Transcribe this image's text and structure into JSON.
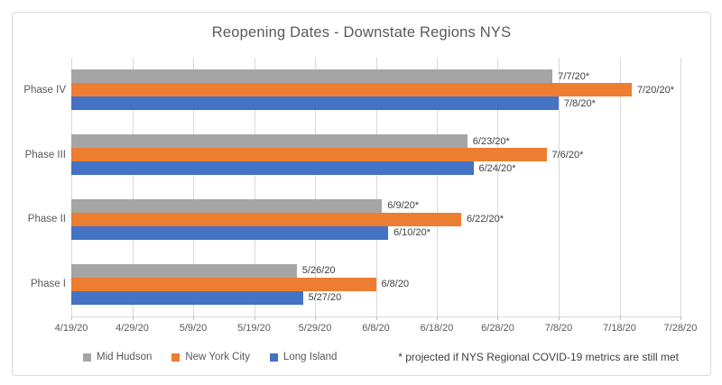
{
  "chart_data": {
    "type": "bar",
    "orientation": "horizontal",
    "title": "Reopening Dates - Downstate Regions NYS",
    "categories": [
      "Phase IV",
      "Phase III",
      "Phase II",
      "Phase I"
    ],
    "series": [
      {
        "name": "Mid Hudson",
        "color": "#A5A5A5",
        "dates": [
          "7/7/20",
          "6/23/20",
          "6/9/20",
          "5/26/20"
        ],
        "labels": [
          "7/7/20*",
          "6/23/20*",
          "6/9/20*",
          "5/26/20"
        ]
      },
      {
        "name": "New York City",
        "color": "#ED7D31",
        "dates": [
          "7/20/20",
          "7/6/20",
          "6/22/20",
          "6/8/20"
        ],
        "labels": [
          "7/20/20*",
          "7/6/20*",
          "6/22/20*",
          "6/8/20"
        ]
      },
      {
        "name": "Long Island",
        "color": "#4472C4",
        "dates": [
          "7/8/20",
          "6/24/20",
          "6/10/20",
          "5/27/20"
        ],
        "labels": [
          "7/8/20*",
          "6/24/20*",
          "6/10/20*",
          "5/27/20"
        ]
      }
    ],
    "x_ticks": [
      "4/19/20",
      "4/29/20",
      "5/9/20",
      "5/19/20",
      "5/29/20",
      "6/8/20",
      "6/18/20",
      "6/28/20",
      "7/8/20",
      "7/18/20",
      "7/28/20"
    ],
    "x_range": [
      "4/19/20",
      "7/28/20"
    ],
    "grid": true,
    "legend_position": "bottom",
    "annotation": "* projected if NYS Regional COVID-19 metrics are still met",
    "colors": {
      "grid": "#D9D9D9",
      "border": "#D9D9D9",
      "axis_text": "#595959",
      "data_label_text": "#404040",
      "title_text": "#595959"
    }
  }
}
